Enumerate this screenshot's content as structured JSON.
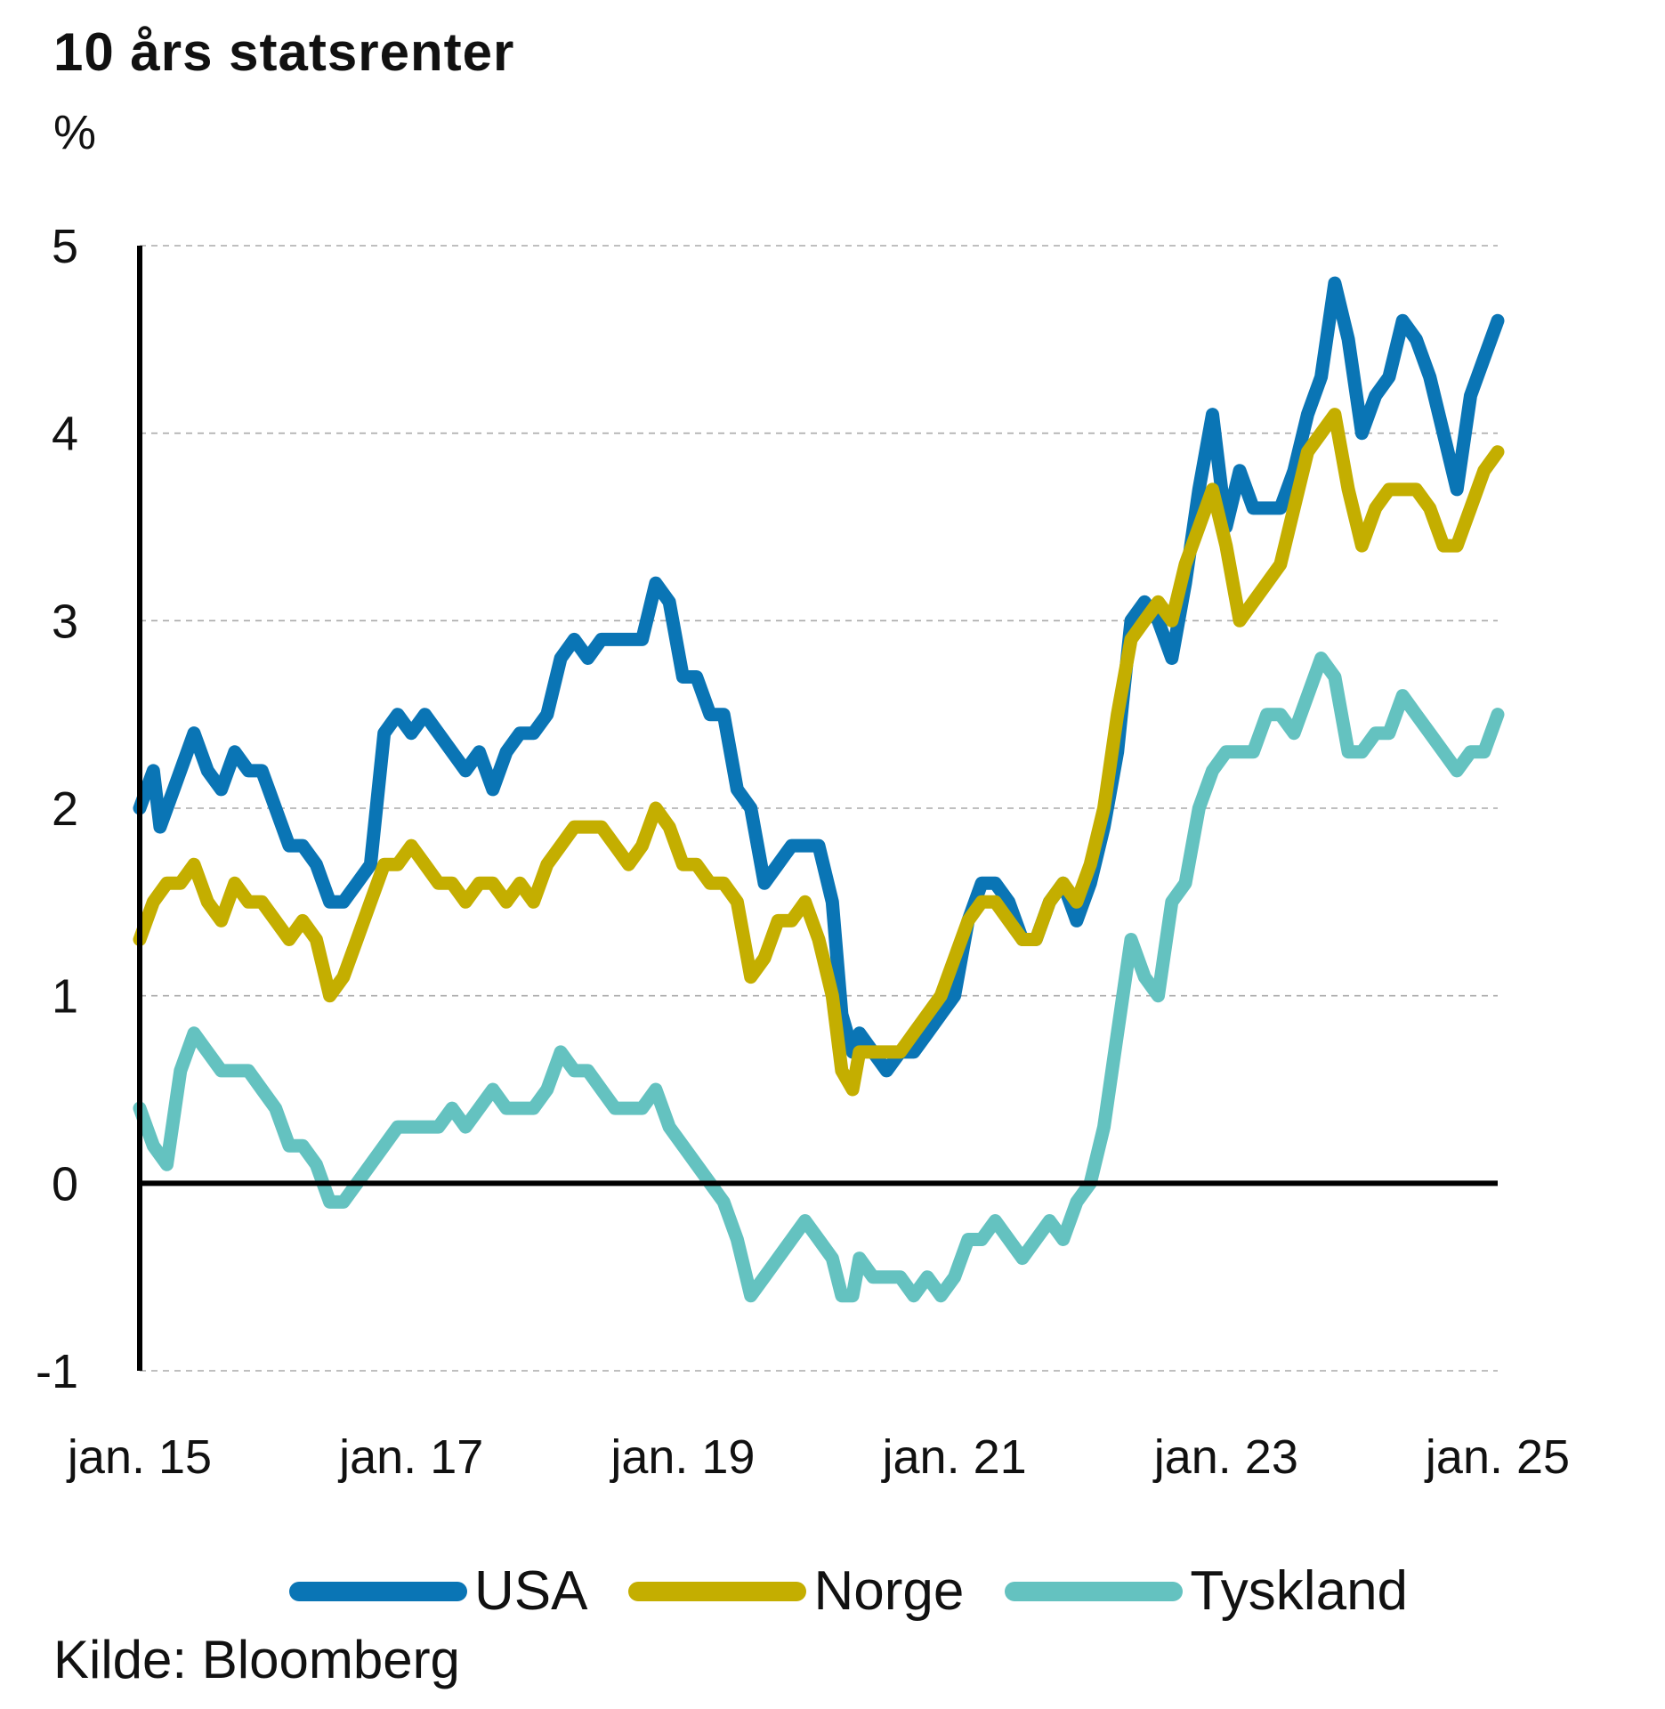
{
  "chart_data": {
    "type": "line",
    "title": "10 års statsrenter",
    "ylabel": "%",
    "xlabel": "",
    "source": "Kilde: Bloomberg",
    "ylim": [
      -1,
      5
    ],
    "xlim": [
      2015.0,
      2025.0
    ],
    "y_ticks": [
      "5",
      "4",
      "3",
      "2",
      "1",
      "0",
      "-1"
    ],
    "x_ticks": [
      "jan. 15",
      "jan. 17",
      "jan. 19",
      "jan. 21",
      "jan. 23",
      "jan. 25"
    ],
    "grid": "horizontal dashed",
    "legend_position": "bottom",
    "series": [
      {
        "name": "USA",
        "color": "#0a75b5",
        "x": [
          2015.0,
          2015.1,
          2015.15,
          2015.25,
          2015.4,
          2015.5,
          2015.6,
          2015.7,
          2015.8,
          2015.9,
          2016.0,
          2016.1,
          2016.2,
          2016.3,
          2016.4,
          2016.5,
          2016.6,
          2016.7,
          2016.8,
          2016.9,
          2017.0,
          2017.1,
          2017.2,
          2017.3,
          2017.4,
          2017.5,
          2017.6,
          2017.7,
          2017.8,
          2017.9,
          2018.0,
          2018.1,
          2018.2,
          2018.3,
          2018.4,
          2018.5,
          2018.6,
          2018.7,
          2018.8,
          2018.9,
          2019.0,
          2019.1,
          2019.2,
          2019.3,
          2019.4,
          2019.5,
          2019.6,
          2019.7,
          2019.8,
          2019.9,
          2020.0,
          2020.1,
          2020.17,
          2020.25,
          2020.3,
          2020.4,
          2020.5,
          2020.6,
          2020.7,
          2020.8,
          2020.9,
          2021.0,
          2021.1,
          2021.2,
          2021.3,
          2021.4,
          2021.5,
          2021.6,
          2021.7,
          2021.8,
          2021.9,
          2022.0,
          2022.1,
          2022.2,
          2022.3,
          2022.4,
          2022.5,
          2022.6,
          2022.7,
          2022.8,
          2022.9,
          2023.0,
          2023.1,
          2023.2,
          2023.3,
          2023.4,
          2023.5,
          2023.6,
          2023.7,
          2023.8,
          2023.9,
          2024.0,
          2024.1,
          2024.2,
          2024.3,
          2024.4,
          2024.5,
          2024.6,
          2024.7,
          2024.8,
          2024.9,
          2025.0
        ],
        "values": [
          2.0,
          2.2,
          1.9,
          2.1,
          2.4,
          2.2,
          2.1,
          2.3,
          2.2,
          2.2,
          2.0,
          1.8,
          1.8,
          1.7,
          1.5,
          1.5,
          1.6,
          1.7,
          2.4,
          2.5,
          2.4,
          2.5,
          2.4,
          2.3,
          2.2,
          2.3,
          2.1,
          2.3,
          2.4,
          2.4,
          2.5,
          2.8,
          2.9,
          2.8,
          2.9,
          2.9,
          2.9,
          2.9,
          3.2,
          3.1,
          2.7,
          2.7,
          2.5,
          2.5,
          2.1,
          2.0,
          1.6,
          1.7,
          1.8,
          1.8,
          1.8,
          1.5,
          0.9,
          0.7,
          0.8,
          0.7,
          0.6,
          0.7,
          0.7,
          0.8,
          0.9,
          1.0,
          1.4,
          1.6,
          1.6,
          1.5,
          1.3,
          1.3,
          1.5,
          1.6,
          1.4,
          1.6,
          1.9,
          2.3,
          3.0,
          3.1,
          3.0,
          2.8,
          3.2,
          3.7,
          4.1,
          3.5,
          3.8,
          3.6,
          3.6,
          3.6,
          3.8,
          4.1,
          4.3,
          4.8,
          4.5,
          4.0,
          4.2,
          4.3,
          4.6,
          4.5,
          4.3,
          4.0,
          3.7,
          4.2,
          4.4,
          4.6
        ]
      },
      {
        "name": "Norge",
        "color": "#c4ae00",
        "x": [
          2015.0,
          2015.1,
          2015.2,
          2015.3,
          2015.4,
          2015.5,
          2015.6,
          2015.7,
          2015.8,
          2015.9,
          2016.0,
          2016.1,
          2016.2,
          2016.3,
          2016.4,
          2016.5,
          2016.6,
          2016.7,
          2016.8,
          2016.9,
          2017.0,
          2017.1,
          2017.2,
          2017.3,
          2017.4,
          2017.5,
          2017.6,
          2017.7,
          2017.8,
          2017.9,
          2018.0,
          2018.1,
          2018.2,
          2018.3,
          2018.4,
          2018.5,
          2018.6,
          2018.7,
          2018.8,
          2018.9,
          2019.0,
          2019.1,
          2019.2,
          2019.3,
          2019.4,
          2019.5,
          2019.6,
          2019.7,
          2019.8,
          2019.9,
          2020.0,
          2020.1,
          2020.17,
          2020.25,
          2020.3,
          2020.4,
          2020.5,
          2020.6,
          2020.7,
          2020.8,
          2020.9,
          2021.0,
          2021.1,
          2021.2,
          2021.3,
          2021.4,
          2021.5,
          2021.6,
          2021.7,
          2021.8,
          2021.9,
          2022.0,
          2022.1,
          2022.2,
          2022.3,
          2022.4,
          2022.5,
          2022.6,
          2022.7,
          2022.8,
          2022.9,
          2023.0,
          2023.1,
          2023.2,
          2023.3,
          2023.4,
          2023.5,
          2023.6,
          2023.7,
          2023.8,
          2023.9,
          2024.0,
          2024.1,
          2024.2,
          2024.3,
          2024.4,
          2024.5,
          2024.6,
          2024.7,
          2024.8,
          2024.9,
          2025.0
        ],
        "values": [
          1.3,
          1.5,
          1.6,
          1.6,
          1.7,
          1.5,
          1.4,
          1.6,
          1.5,
          1.5,
          1.4,
          1.3,
          1.4,
          1.3,
          1.0,
          1.1,
          1.3,
          1.5,
          1.7,
          1.7,
          1.8,
          1.7,
          1.6,
          1.6,
          1.5,
          1.6,
          1.6,
          1.5,
          1.6,
          1.5,
          1.7,
          1.8,
          1.9,
          1.9,
          1.9,
          1.8,
          1.7,
          1.8,
          2.0,
          1.9,
          1.7,
          1.7,
          1.6,
          1.6,
          1.5,
          1.1,
          1.2,
          1.4,
          1.4,
          1.5,
          1.3,
          1.0,
          0.6,
          0.5,
          0.7,
          0.7,
          0.7,
          0.7,
          0.8,
          0.9,
          1.0,
          1.2,
          1.4,
          1.5,
          1.5,
          1.4,
          1.3,
          1.3,
          1.5,
          1.6,
          1.5,
          1.7,
          2.0,
          2.5,
          2.9,
          3.0,
          3.1,
          3.0,
          3.3,
          3.5,
          3.7,
          3.4,
          3.0,
          3.1,
          3.2,
          3.3,
          3.6,
          3.9,
          4.0,
          4.1,
          3.7,
          3.4,
          3.6,
          3.7,
          3.7,
          3.7,
          3.6,
          3.4,
          3.4,
          3.6,
          3.8,
          3.9
        ]
      },
      {
        "name": "Tyskland",
        "color": "#64c2c0",
        "x": [
          2015.0,
          2015.1,
          2015.2,
          2015.3,
          2015.4,
          2015.5,
          2015.6,
          2015.7,
          2015.8,
          2015.9,
          2016.0,
          2016.1,
          2016.2,
          2016.3,
          2016.4,
          2016.5,
          2016.6,
          2016.7,
          2016.8,
          2016.9,
          2017.0,
          2017.1,
          2017.2,
          2017.3,
          2017.4,
          2017.5,
          2017.6,
          2017.7,
          2017.8,
          2017.9,
          2018.0,
          2018.1,
          2018.2,
          2018.3,
          2018.4,
          2018.5,
          2018.6,
          2018.7,
          2018.8,
          2018.9,
          2019.0,
          2019.1,
          2019.2,
          2019.3,
          2019.4,
          2019.5,
          2019.6,
          2019.7,
          2019.8,
          2019.9,
          2020.0,
          2020.1,
          2020.17,
          2020.25,
          2020.3,
          2020.4,
          2020.5,
          2020.6,
          2020.7,
          2020.8,
          2020.9,
          2021.0,
          2021.1,
          2021.2,
          2021.3,
          2021.4,
          2021.5,
          2021.6,
          2021.7,
          2021.8,
          2021.9,
          2022.0,
          2022.1,
          2022.2,
          2022.3,
          2022.4,
          2022.5,
          2022.6,
          2022.7,
          2022.8,
          2022.9,
          2023.0,
          2023.1,
          2023.2,
          2023.3,
          2023.4,
          2023.5,
          2023.6,
          2023.7,
          2023.8,
          2023.9,
          2024.0,
          2024.1,
          2024.2,
          2024.3,
          2024.4,
          2024.5,
          2024.6,
          2024.7,
          2024.8,
          2024.9,
          2025.0
        ],
        "values": [
          0.4,
          0.2,
          0.1,
          0.6,
          0.8,
          0.7,
          0.6,
          0.6,
          0.6,
          0.5,
          0.4,
          0.2,
          0.2,
          0.1,
          -0.1,
          -0.1,
          0.0,
          0.1,
          0.2,
          0.3,
          0.3,
          0.3,
          0.3,
          0.4,
          0.3,
          0.4,
          0.5,
          0.4,
          0.4,
          0.4,
          0.5,
          0.7,
          0.6,
          0.6,
          0.5,
          0.4,
          0.4,
          0.4,
          0.5,
          0.3,
          0.2,
          0.1,
          0.0,
          -0.1,
          -0.3,
          -0.6,
          -0.5,
          -0.4,
          -0.3,
          -0.2,
          -0.3,
          -0.4,
          -0.6,
          -0.6,
          -0.4,
          -0.5,
          -0.5,
          -0.5,
          -0.6,
          -0.5,
          -0.6,
          -0.5,
          -0.3,
          -0.3,
          -0.2,
          -0.3,
          -0.4,
          -0.3,
          -0.2,
          -0.3,
          -0.1,
          0.0,
          0.3,
          0.8,
          1.3,
          1.1,
          1.0,
          1.5,
          1.6,
          2.0,
          2.2,
          2.3,
          2.3,
          2.3,
          2.5,
          2.5,
          2.4,
          2.6,
          2.8,
          2.7,
          2.3,
          2.3,
          2.4,
          2.4,
          2.6,
          2.5,
          2.4,
          2.3,
          2.2,
          2.3,
          2.3,
          2.5
        ]
      }
    ]
  }
}
